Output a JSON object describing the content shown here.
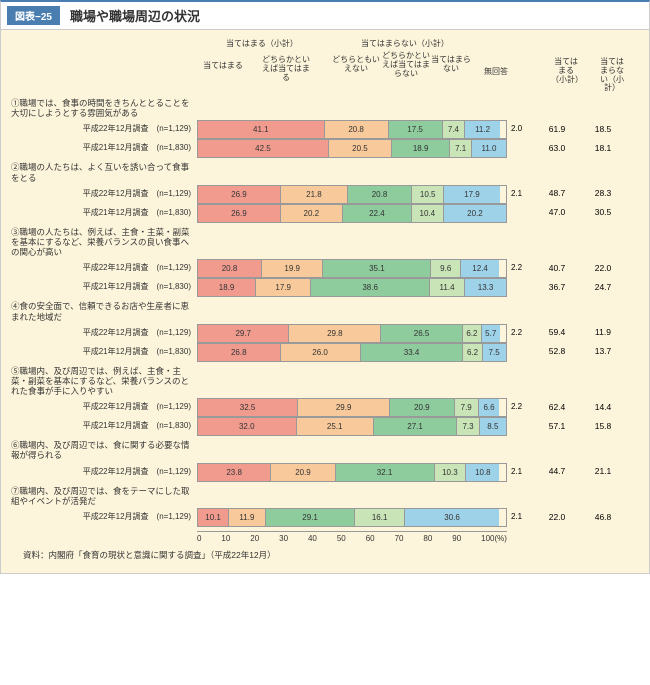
{
  "figure_label": "図表−25",
  "title": "職場や職場周辺の状況",
  "colors": {
    "c1": "#f19b8f",
    "c2": "#f8c99a",
    "c3": "#8ecb9d",
    "c4": "#c9e4b7",
    "c5": "#9ed2e8",
    "bg": "#fdf5db"
  },
  "top_labels": {
    "l1": "当てはまる（小計）",
    "l2": "当てはまる",
    "l3": "どちらかといえば当てはまる",
    "l4": "どちらともいえない",
    "l5": "どちらかといえば当てはまらない",
    "l6": "当てはまらない（小計）",
    "l7": "当てはまらない",
    "l8": "無回答"
  },
  "right_headers": {
    "h1": "当てはまる（小計）",
    "h2": "当てはまらない（小計）"
  },
  "questions": [
    {
      "text": "①職場では、食事の時間をきちんととることを大切にしようとする雰囲気がある",
      "rows": [
        {
          "label": "平成22年12月調査　(n=1,129)",
          "segs": [
            41.1,
            20.8,
            17.5,
            7.4,
            11.2
          ],
          "nr": 2.0,
          "r1": 61.9,
          "r2": 18.5
        },
        {
          "label": "平成21年12月調査　(n=1,830)",
          "segs": [
            42.5,
            20.5,
            18.9,
            7.1,
            11.0
          ],
          "nr": null,
          "r1": 63.0,
          "r2": 18.1
        }
      ]
    },
    {
      "text": "②職場の人たちは、よく互いを誘い合って食事をとる",
      "rows": [
        {
          "label": "平成22年12月調査　(n=1,129)",
          "segs": [
            26.9,
            21.8,
            20.8,
            10.5,
            17.9
          ],
          "nr": 2.1,
          "r1": 48.7,
          "r2": 28.3
        },
        {
          "label": "平成21年12月調査　(n=1,830)",
          "segs": [
            26.9,
            20.2,
            22.4,
            10.4,
            20.2
          ],
          "nr": null,
          "r1": 47.0,
          "r2": 30.5
        }
      ]
    },
    {
      "text": "③職場の人たちは、例えば、主食・主菜・副菜を基本にするなど、栄養バランスの良い食事への関心が高い",
      "rows": [
        {
          "label": "平成22年12月調査　(n=1,129)",
          "segs": [
            20.8,
            19.9,
            35.1,
            9.6,
            12.4
          ],
          "nr": 2.2,
          "r1": 40.7,
          "r2": 22.0
        },
        {
          "label": "平成21年12月調査　(n=1,830)",
          "segs": [
            18.9,
            17.9,
            38.6,
            11.4,
            13.3
          ],
          "nr": null,
          "r1": 36.7,
          "r2": 24.7
        }
      ]
    },
    {
      "text": "④食の安全面で、信頼できるお店や生産者に恵まれた地域だ",
      "rows": [
        {
          "label": "平成22年12月調査　(n=1,129)",
          "segs": [
            29.7,
            29.8,
            26.5,
            6.2,
            5.7
          ],
          "nr": 2.2,
          "r1": 59.4,
          "r2": 11.9
        },
        {
          "label": "平成21年12月調査　(n=1,830)",
          "segs": [
            26.8,
            26.0,
            33.4,
            6.2,
            7.5
          ],
          "nr": null,
          "r1": 52.8,
          "r2": 13.7
        }
      ]
    },
    {
      "text": "⑤職場内、及び周辺では、例えば、主食・主菜・副菜を基本にするなど、栄養バランスのとれた食事が手に入りやすい",
      "rows": [
        {
          "label": "平成22年12月調査　(n=1,129)",
          "segs": [
            32.5,
            29.9,
            20.9,
            7.9,
            6.6
          ],
          "nr": 2.2,
          "r1": 62.4,
          "r2": 14.4
        },
        {
          "label": "平成21年12月調査　(n=1,830)",
          "segs": [
            32.0,
            25.1,
            27.1,
            7.3,
            8.5
          ],
          "nr": null,
          "r1": 57.1,
          "r2": 15.8
        }
      ]
    },
    {
      "text": "⑥職場内、及び周辺では、食に関する必要な情報が得られる",
      "rows": [
        {
          "label": "平成22年12月調査　(n=1,129)",
          "segs": [
            23.8,
            20.9,
            32.1,
            10.3,
            10.8
          ],
          "nr": 2.1,
          "r1": 44.7,
          "r2": 21.1
        }
      ]
    },
    {
      "text": "⑦職場内、及び周辺では、食をテーマにした取組やイベントが活発だ",
      "rows": [
        {
          "label": "平成22年12月調査　(n=1,129)",
          "segs": [
            10.1,
            11.9,
            29.1,
            16.1,
            30.6
          ],
          "nr": 2.1,
          "r1": 22.0,
          "r2": 46.8
        }
      ]
    }
  ],
  "axis_ticks": [
    "0",
    "10",
    "20",
    "30",
    "40",
    "50",
    "60",
    "70",
    "80",
    "90",
    "100(%)"
  ],
  "source": "資料：内閣府「食育の現状と意識に関する調査」（平成22年12月）"
}
